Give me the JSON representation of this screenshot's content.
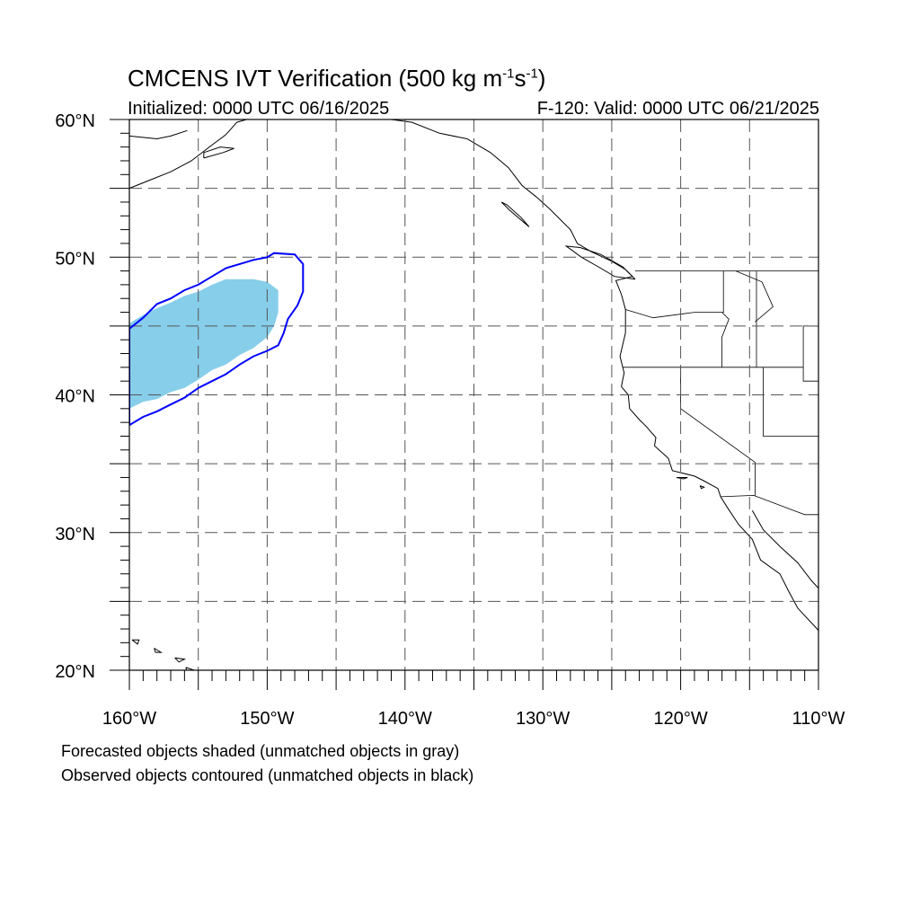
{
  "header": {
    "title_prefix": "CMCENS IVT Verification (500 kg m",
    "title_sup1": "-1",
    "title_mid": "s",
    "title_sup2": "-1",
    "title_suffix": ")",
    "initialized": "Initialized: 0000 UTC 06/16/2025",
    "valid": "F-120: Valid: 0000 UTC 06/21/2025"
  },
  "map": {
    "projection": "cylindrical-equidistant",
    "lon_range": [
      -160,
      -110
    ],
    "lat_range": [
      20,
      60
    ],
    "grid": "dashed, every 5 degrees",
    "lat_labels": [
      {
        "lat": 60,
        "text": "60°N"
      },
      {
        "lat": 50,
        "text": "50°N"
      },
      {
        "lat": 40,
        "text": "40°N"
      },
      {
        "lat": 30,
        "text": "30°N"
      },
      {
        "lat": 20,
        "text": "20°N"
      }
    ],
    "lon_labels": [
      {
        "lon": -160,
        "text": "160°W"
      },
      {
        "lon": -150,
        "text": "150°W"
      },
      {
        "lon": -140,
        "text": "140°W"
      },
      {
        "lon": -130,
        "text": "130°W"
      },
      {
        "lon": -120,
        "text": "120°W"
      },
      {
        "lon": -110,
        "text": "110°W"
      }
    ],
    "forecast_object": {
      "color": "#87ceeb",
      "polygon_lonlat": [
        [
          -160,
          39.0
        ],
        [
          -159,
          39.5
        ],
        [
          -158,
          39.7
        ],
        [
          -157,
          40.2
        ],
        [
          -156,
          40.5
        ],
        [
          -155,
          41.1
        ],
        [
          -154,
          41.8
        ],
        [
          -153,
          42.2
        ],
        [
          -152,
          42.9
        ],
        [
          -151,
          43.4
        ],
        [
          -150,
          44.2
        ],
        [
          -149.5,
          45.0
        ],
        [
          -149.2,
          46.0
        ],
        [
          -149.2,
          47.6
        ],
        [
          -150,
          48.2
        ],
        [
          -151,
          48.4
        ],
        [
          -153,
          48.4
        ],
        [
          -154,
          48.0
        ],
        [
          -155,
          47.5
        ],
        [
          -156,
          47.2
        ],
        [
          -157,
          46.7
        ],
        [
          -158,
          46.3
        ],
        [
          -159,
          45.8
        ],
        [
          -160,
          45.2
        ]
      ]
    },
    "observed_object": {
      "color": "#0000ff",
      "polygon_lonlat": [
        [
          -160,
          37.8
        ],
        [
          -159,
          38.4
        ],
        [
          -158,
          38.8
        ],
        [
          -157,
          39.3
        ],
        [
          -156,
          39.8
        ],
        [
          -155,
          40.5
        ],
        [
          -154,
          41.0
        ],
        [
          -153,
          41.5
        ],
        [
          -152,
          42.2
        ],
        [
          -151,
          42.8
        ],
        [
          -150,
          43.2
        ],
        [
          -149.2,
          43.6
        ],
        [
          -148.8,
          44.5
        ],
        [
          -148.5,
          45.5
        ],
        [
          -147.8,
          46.5
        ],
        [
          -147.4,
          47.5
        ],
        [
          -147.4,
          49.5
        ],
        [
          -148.0,
          50.2
        ],
        [
          -149.5,
          50.3
        ],
        [
          -150.0,
          50.0
        ],
        [
          -151.0,
          49.8
        ],
        [
          -152.0,
          49.5
        ],
        [
          -153.0,
          49.2
        ],
        [
          -154.0,
          48.6
        ],
        [
          -155.0,
          48.0
        ],
        [
          -156.0,
          47.6
        ],
        [
          -157.0,
          47.0
        ],
        [
          -158.0,
          46.6
        ],
        [
          -159.0,
          45.6
        ],
        [
          -160,
          44.8
        ]
      ]
    }
  },
  "notes": {
    "line1": "Forecasted objects shaded (unmatched objects in gray)",
    "line2": "Observed objects contoured (unmatched objects in black)"
  }
}
